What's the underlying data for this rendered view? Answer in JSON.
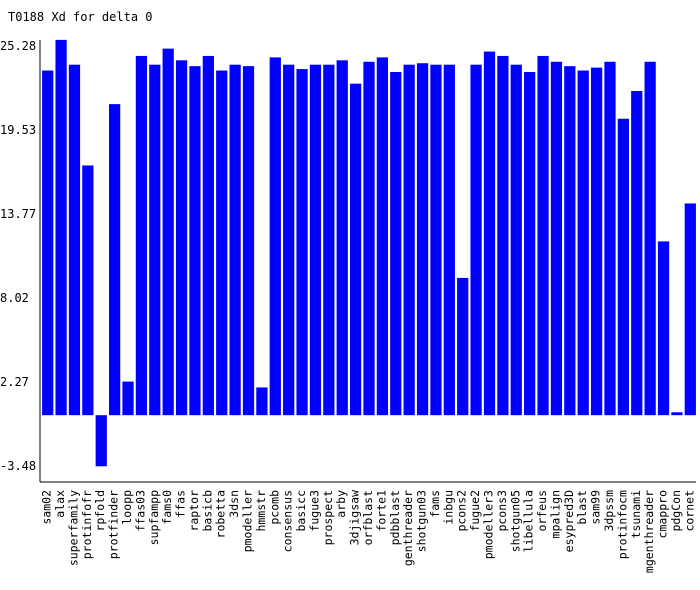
{
  "chart_data": {
    "type": "bar",
    "title": "T0188 Xd for delta 0",
    "xlabel": "",
    "ylabel": "",
    "ylim": [
      -3.48,
      25.28
    ],
    "y_ticks": [
      "25.28",
      "19.53",
      "13.77",
      "8.02",
      "2.27",
      "-3.48"
    ],
    "y_tick_values": [
      25.28,
      19.53,
      13.77,
      8.02,
      2.27,
      -3.48
    ],
    "bar_color": "#0000ff",
    "grid": false,
    "categories": [
      "sam02",
      "alax",
      "superfamily",
      "protinfofr",
      "rpfold",
      "protfinder",
      "loopp",
      "ffas03",
      "supfampp",
      "fams0",
      "ffas",
      "raptor",
      "basicb",
      "robetta",
      "3dsn",
      "pmodeller",
      "hmmstr",
      "pcomb",
      "consensus",
      "basicc",
      "fugue3",
      "prospect",
      "arby",
      "3djigsaw",
      "orfblast",
      "forte1",
      "pdbblast",
      "genthreader",
      "shotgun03",
      "fams",
      "inbgu",
      "pcons2",
      "fugue2",
      "pmodeller3",
      "pcons3",
      "shotgun05",
      "libellula",
      "orfeus",
      "mpalign",
      "esypred3D",
      "blast",
      "sam99",
      "3dpssm",
      "protinfocm",
      "tsunami",
      "mgenthreader",
      "cmappro",
      "pdgCon",
      "cornet"
    ],
    "values": [
      23.6,
      25.7,
      24.0,
      17.1,
      -3.5,
      21.3,
      2.3,
      24.6,
      24.0,
      25.1,
      24.3,
      23.9,
      24.6,
      23.6,
      24.0,
      23.9,
      1.9,
      24.5,
      24.0,
      23.7,
      24.0,
      24.0,
      24.3,
      22.7,
      24.2,
      24.5,
      23.5,
      24.0,
      24.1,
      24.0,
      24.0,
      9.4,
      24.0,
      24.9,
      24.6,
      24.0,
      23.5,
      24.6,
      24.2,
      23.9,
      23.6,
      23.8,
      24.2,
      20.3,
      22.2,
      24.2,
      11.9,
      0.2,
      14.5
    ]
  }
}
